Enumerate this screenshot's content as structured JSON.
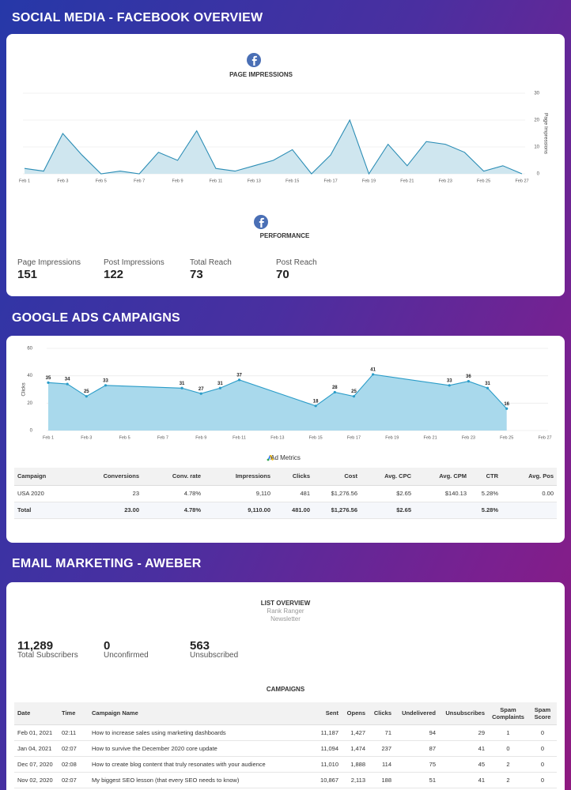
{
  "facebook": {
    "title": "SOCIAL MEDIA - FACEBOOK OVERVIEW",
    "performance_title": "PERFORMANCE",
    "metrics": [
      {
        "label": "Page Impressions",
        "value": 151
      },
      {
        "label": "Post Impressions",
        "value": 122
      },
      {
        "label": "Total Reach",
        "value": 73
      },
      {
        "label": "Post Reach",
        "value": 70
      }
    ]
  },
  "google": {
    "title": "GOOGLE ADS CAMPAIGNS",
    "table": {
      "title": "Ad Metrics",
      "columns": [
        "Campaign",
        "Conversions",
        "Conv. rate",
        "Impressions",
        "Clicks",
        "Cost",
        "Avg. CPC",
        "Avg. CPM",
        "CTR",
        "Avg. Pos"
      ],
      "rows": [
        [
          "USA 2020",
          "23",
          "4.78%",
          "9,110",
          "481",
          "$1,276.56",
          "$2.65",
          "$140.13",
          "5.28%",
          "0.00"
        ],
        [
          "Total",
          "23.00",
          "4.78%",
          "9,110.00",
          "481.00",
          "$1,276.56",
          "$2.65",
          null,
          "5.28%",
          null
        ]
      ]
    }
  },
  "email": {
    "title": "EMAIL MARKETING - AWEBER",
    "list_overview": {
      "title": "LIST OVERVIEW",
      "account": "Rank Ranger",
      "list": "Newsletter"
    },
    "stats": [
      {
        "value": "11,289",
        "label": "Total Subscribers"
      },
      {
        "value": "0",
        "label": "Unconfirmed"
      },
      {
        "value": "563",
        "label": "Unsubscribed"
      }
    ],
    "campaigns": {
      "title": "CAMPAIGNS",
      "columns": [
        "Date",
        "Time",
        "Campaign Name",
        "Sent",
        "Opens",
        "Clicks",
        "Undelivered",
        "Unsubscribes",
        "Spam Complaints",
        "Spam Score"
      ],
      "rows": [
        [
          "Feb 01, 2021",
          "02:11",
          "How to increase sales using marketing dashboards",
          "11,187",
          "1,427",
          "71",
          "94",
          "29",
          "1",
          "0"
        ],
        [
          "Jan 04, 2021",
          "02:07",
          "How to survive the December 2020 core update",
          "11,094",
          "1,474",
          "237",
          "87",
          "41",
          "0",
          "0"
        ],
        [
          "Dec 07, 2020",
          "02:08",
          "How to create blog content that truly resonates with your audience",
          "11,010",
          "1,888",
          "114",
          "75",
          "45",
          "2",
          "0"
        ],
        [
          "Nov 02, 2020",
          "02:07",
          "My biggest SEO lesson (that every SEO needs to know)",
          "10,867",
          "2,113",
          "188",
          "51",
          "41",
          "2",
          "0"
        ]
      ]
    }
  },
  "chart_data": [
    {
      "type": "area",
      "title": "PAGE IMPRESSIONS",
      "y_label": "Page Impressions",
      "y_axis": "right",
      "grid": true,
      "data_labels": false,
      "color": "#2b8db5",
      "fill": "#cfe6ef",
      "x": [
        "Feb 1",
        "Feb 2",
        "Feb 3",
        "Feb 4",
        "Feb 5",
        "Feb 6",
        "Feb 7",
        "Feb 8",
        "Feb 9",
        "Feb 10",
        "Feb 11",
        "Feb 12",
        "Feb 13",
        "Feb 14",
        "Feb 15",
        "Feb 16",
        "Feb 17",
        "Feb 18",
        "Feb 19",
        "Feb 20",
        "Feb 21",
        "Feb 22",
        "Feb 23",
        "Feb 24",
        "Feb 25",
        "Feb 26",
        "Feb 27"
      ],
      "values": [
        2,
        1,
        15,
        7,
        0,
        1,
        0,
        8,
        5,
        16,
        2,
        1,
        3,
        5,
        9,
        0,
        7,
        20,
        0,
        11,
        3,
        12,
        11,
        8,
        1,
        3,
        0
      ],
      "xticks": [
        "Feb 1",
        "Feb 3",
        "Feb 5",
        "Feb 7",
        "Feb 9",
        "Feb 11",
        "Feb 13",
        "Feb 15",
        "Feb 17",
        "Feb 19",
        "Feb 21",
        "Feb 23",
        "Feb 25",
        "Feb 27"
      ],
      "ylim": [
        0,
        30
      ],
      "yticks": [
        0,
        10,
        20,
        30
      ]
    },
    {
      "type": "area",
      "y_label": "Clicks",
      "y_axis": "left",
      "grid": true,
      "data_labels": true,
      "color": "#2a9cc8",
      "fill": "#a9d9ec",
      "x": [
        "Feb 1",
        "Feb 2",
        "Feb 3",
        "Feb 4",
        "Feb 8",
        "Feb 9",
        "Feb 10",
        "Feb 11",
        "Feb 15",
        "Feb 16",
        "Feb 17",
        "Feb 18",
        "Feb 22",
        "Feb 23",
        "Feb 24",
        "Feb 25"
      ],
      "values": [
        35,
        34,
        25,
        33,
        31,
        27,
        31,
        37,
        18,
        28,
        25,
        41,
        33,
        36,
        31,
        16
      ],
      "xticks": [
        "Feb 1",
        "Feb 3",
        "Feb 5",
        "Feb 7",
        "Feb 9",
        "Feb 11",
        "Feb 13",
        "Feb 15",
        "Feb 17",
        "Feb 19",
        "Feb 21",
        "Feb 23",
        "Feb 25",
        "Feb 27"
      ],
      "ylim": [
        0,
        60
      ],
      "yticks": [
        0,
        20,
        40,
        60
      ]
    }
  ]
}
